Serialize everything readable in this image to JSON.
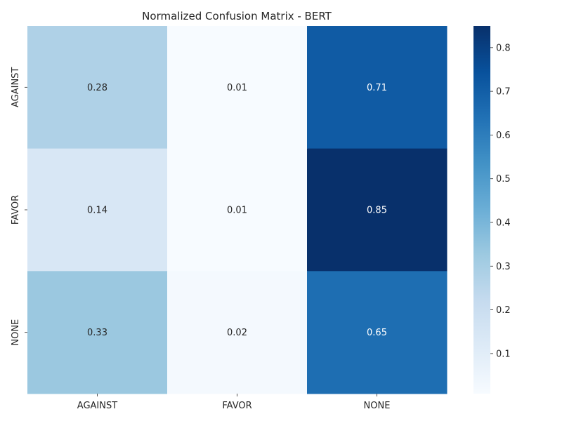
{
  "chart_data": {
    "type": "heatmap",
    "title": "Normalized Confusion Matrix - BERT",
    "xlabel": "",
    "ylabel": "",
    "x_categories": [
      "AGAINST",
      "FAVOR",
      "NONE"
    ],
    "y_categories": [
      "AGAINST",
      "FAVOR",
      "NONE"
    ],
    "values": [
      [
        0.28,
        0.01,
        0.71
      ],
      [
        0.14,
        0.01,
        0.85
      ],
      [
        0.33,
        0.02,
        0.65
      ]
    ],
    "cell_labels": [
      [
        "0.28",
        "0.01",
        "0.71"
      ],
      [
        "0.14",
        "0.01",
        "0.85"
      ],
      [
        "0.33",
        "0.02",
        "0.65"
      ]
    ],
    "colormap": "Blues",
    "colorbar": {
      "range": [
        0.0083,
        0.8495
      ],
      "ticks": [
        0.1,
        0.2,
        0.3,
        0.4,
        0.5,
        0.6,
        0.7,
        0.8
      ],
      "tick_labels": [
        "0.1",
        "0.2",
        "0.3",
        "0.4",
        "0.5",
        "0.6",
        "0.7",
        "0.8"
      ]
    },
    "grid": false,
    "legend": "colorbar-right"
  }
}
